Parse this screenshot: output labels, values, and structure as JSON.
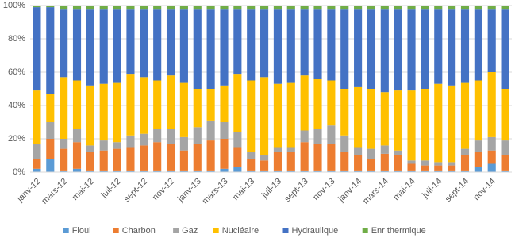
{
  "chart_data": {
    "type": "stacked-bar-percent",
    "categories": [
      "janv-12",
      null,
      "mars-12",
      null,
      "mai-12",
      null,
      "juil-12",
      null,
      "sept-12",
      null,
      "nov-12",
      null,
      "janv-13",
      null,
      "mars-13",
      null,
      "mai-13",
      null,
      "juil-13",
      null,
      "sept-13",
      null,
      "nov-13",
      null,
      "janv-14",
      null,
      "mars-14",
      null,
      "mai-14",
      null,
      "juil-14",
      null,
      "sept-14",
      null,
      "nov-14",
      null
    ],
    "series": [
      {
        "name": "Fioul",
        "color": "#5b9bd5",
        "values": [
          2,
          8,
          1,
          2,
          1,
          1,
          1,
          1,
          1,
          1,
          1,
          1,
          1,
          1,
          2,
          3,
          1,
          1,
          1,
          1,
          1,
          1,
          1,
          1,
          1,
          1,
          1,
          1,
          1,
          1,
          1,
          1,
          1,
          3,
          5,
          1
        ]
      },
      {
        "name": "Charbon",
        "color": "#ed7d31",
        "values": [
          6,
          12,
          13,
          16,
          11,
          12,
          13,
          14,
          15,
          17,
          16,
          12,
          16,
          18,
          18,
          12,
          7,
          6,
          11,
          11,
          17,
          16,
          16,
          11,
          9,
          7,
          10,
          9,
          4,
          3,
          3,
          3,
          9,
          9,
          8,
          9
        ]
      },
      {
        "name": "Gaz",
        "color": "#a5a5a5",
        "values": [
          9,
          10,
          6,
          8,
          4,
          6,
          4,
          7,
          7,
          8,
          9,
          8,
          10,
          12,
          10,
          9,
          4,
          3,
          3,
          3,
          7,
          9,
          11,
          10,
          5,
          6,
          5,
          3,
          2,
          3,
          2,
          2,
          4,
          7,
          8,
          9
        ]
      },
      {
        "name": "Nucléaire",
        "color": "#ffc000",
        "values": [
          32,
          17,
          37,
          29,
          36,
          34,
          36,
          37,
          34,
          29,
          32,
          33,
          23,
          19,
          22,
          35,
          43,
          47,
          38,
          39,
          33,
          30,
          27,
          28,
          36,
          36,
          32,
          36,
          42,
          43,
          47,
          46,
          40,
          36,
          39,
          31
        ]
      },
      {
        "name": "Hydraulique",
        "color": "#4472c4",
        "values": [
          50,
          52,
          41,
          43,
          46,
          45,
          44,
          39,
          41,
          43,
          40,
          44,
          48,
          48,
          46,
          39,
          43,
          41,
          45,
          44,
          40,
          42,
          43,
          48,
          47,
          48,
          50,
          49,
          49,
          48,
          45,
          46,
          44,
          43,
          38,
          48
        ]
      },
      {
        "name": "Enr thermique",
        "color": "#70ad47",
        "values": [
          1,
          1,
          2,
          2,
          2,
          2,
          2,
          2,
          2,
          2,
          2,
          2,
          2,
          2,
          2,
          2,
          2,
          2,
          2,
          2,
          2,
          2,
          2,
          2,
          2,
          2,
          2,
          2,
          2,
          2,
          2,
          2,
          2,
          2,
          2,
          2
        ]
      }
    ],
    "ylim": [
      0,
      100
    ],
    "yticks": [
      {
        "value": 0,
        "label": "0%"
      },
      {
        "value": 20,
        "label": "20%"
      },
      {
        "value": 40,
        "label": "40%"
      },
      {
        "value": 60,
        "label": "60%"
      },
      {
        "value": 80,
        "label": "80%"
      },
      {
        "value": 100,
        "label": "100%"
      }
    ],
    "grid": true,
    "legend": "bottom"
  }
}
